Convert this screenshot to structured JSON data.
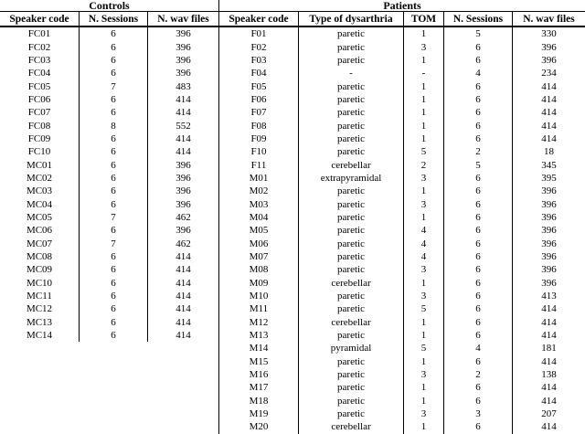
{
  "colors": {
    "text": "#000000",
    "border": "#000000",
    "background": "#ffffff"
  },
  "controls": {
    "title": "Controls",
    "headers": [
      "Speaker code",
      "N. Sessions",
      "N. wav files"
    ],
    "rows": [
      [
        "FC01",
        "6",
        "396"
      ],
      [
        "FC02",
        "6",
        "396"
      ],
      [
        "FC03",
        "6",
        "396"
      ],
      [
        "FC04",
        "6",
        "396"
      ],
      [
        "FC05",
        "7",
        "483"
      ],
      [
        "FC06",
        "6",
        "414"
      ],
      [
        "FC07",
        "6",
        "414"
      ],
      [
        "FC08",
        "8",
        "552"
      ],
      [
        "FC09",
        "6",
        "414"
      ],
      [
        "FC10",
        "6",
        "414"
      ],
      [
        "MC01",
        "6",
        "396"
      ],
      [
        "MC02",
        "6",
        "396"
      ],
      [
        "MC03",
        "6",
        "396"
      ],
      [
        "MC04",
        "6",
        "396"
      ],
      [
        "MC05",
        "7",
        "462"
      ],
      [
        "MC06",
        "6",
        "396"
      ],
      [
        "MC07",
        "7",
        "462"
      ],
      [
        "MC08",
        "6",
        "414"
      ],
      [
        "MC09",
        "6",
        "414"
      ],
      [
        "MC10",
        "6",
        "414"
      ],
      [
        "MC11",
        "6",
        "414"
      ],
      [
        "MC12",
        "6",
        "414"
      ],
      [
        "MC13",
        "6",
        "414"
      ],
      [
        "MC14",
        "6",
        "414"
      ]
    ]
  },
  "patients": {
    "title": "Patients",
    "headers": [
      "Speaker code",
      "Type of dysarthria",
      "TOM",
      "N. Sessions",
      "N. wav files"
    ],
    "rows": [
      [
        "F01",
        "paretic",
        "1",
        "5",
        "330"
      ],
      [
        "F02",
        "paretic",
        "3",
        "6",
        "396"
      ],
      [
        "F03",
        "paretic",
        "1",
        "6",
        "396"
      ],
      [
        "F04",
        "-",
        "-",
        "4",
        "234"
      ],
      [
        "F05",
        "paretic",
        "1",
        "6",
        "414"
      ],
      [
        "F06",
        "paretic",
        "1",
        "6",
        "414"
      ],
      [
        "F07",
        "paretic",
        "1",
        "6",
        "414"
      ],
      [
        "F08",
        "paretic",
        "1",
        "6",
        "414"
      ],
      [
        "F09",
        "paretic",
        "1",
        "6",
        "414"
      ],
      [
        "F10",
        "paretic",
        "5",
        "2",
        "18"
      ],
      [
        "F11",
        "cerebellar",
        "2",
        "5",
        "345"
      ],
      [
        "M01",
        "extrapyramidal",
        "3",
        "6",
        "395"
      ],
      [
        "M02",
        "paretic",
        "1",
        "6",
        "396"
      ],
      [
        "M03",
        "paretic",
        "3",
        "6",
        "396"
      ],
      [
        "M04",
        "paretic",
        "1",
        "6",
        "396"
      ],
      [
        "M05",
        "paretic",
        "4",
        "6",
        "396"
      ],
      [
        "M06",
        "paretic",
        "4",
        "6",
        "396"
      ],
      [
        "M07",
        "paretic",
        "4",
        "6",
        "396"
      ],
      [
        "M08",
        "paretic",
        "3",
        "6",
        "396"
      ],
      [
        "M09",
        "cerebellar",
        "1",
        "6",
        "396"
      ],
      [
        "M10",
        "paretic",
        "3",
        "6",
        "413"
      ],
      [
        "M11",
        "paretic",
        "5",
        "6",
        "414"
      ],
      [
        "M12",
        "cerebellar",
        "1",
        "6",
        "414"
      ],
      [
        "M13",
        "paretic",
        "1",
        "6",
        "414"
      ],
      [
        "M14",
        "pyramidal",
        "5",
        "4",
        "181"
      ],
      [
        "M15",
        "paretic",
        "1",
        "6",
        "414"
      ],
      [
        "M16",
        "paretic",
        "3",
        "2",
        "138"
      ],
      [
        "M17",
        "paretic",
        "1",
        "6",
        "414"
      ],
      [
        "M18",
        "paretic",
        "1",
        "6",
        "414"
      ],
      [
        "M19",
        "paretic",
        "3",
        "3",
        "207"
      ],
      [
        "M20",
        "cerebellar",
        "1",
        "6",
        "414"
      ]
    ]
  }
}
